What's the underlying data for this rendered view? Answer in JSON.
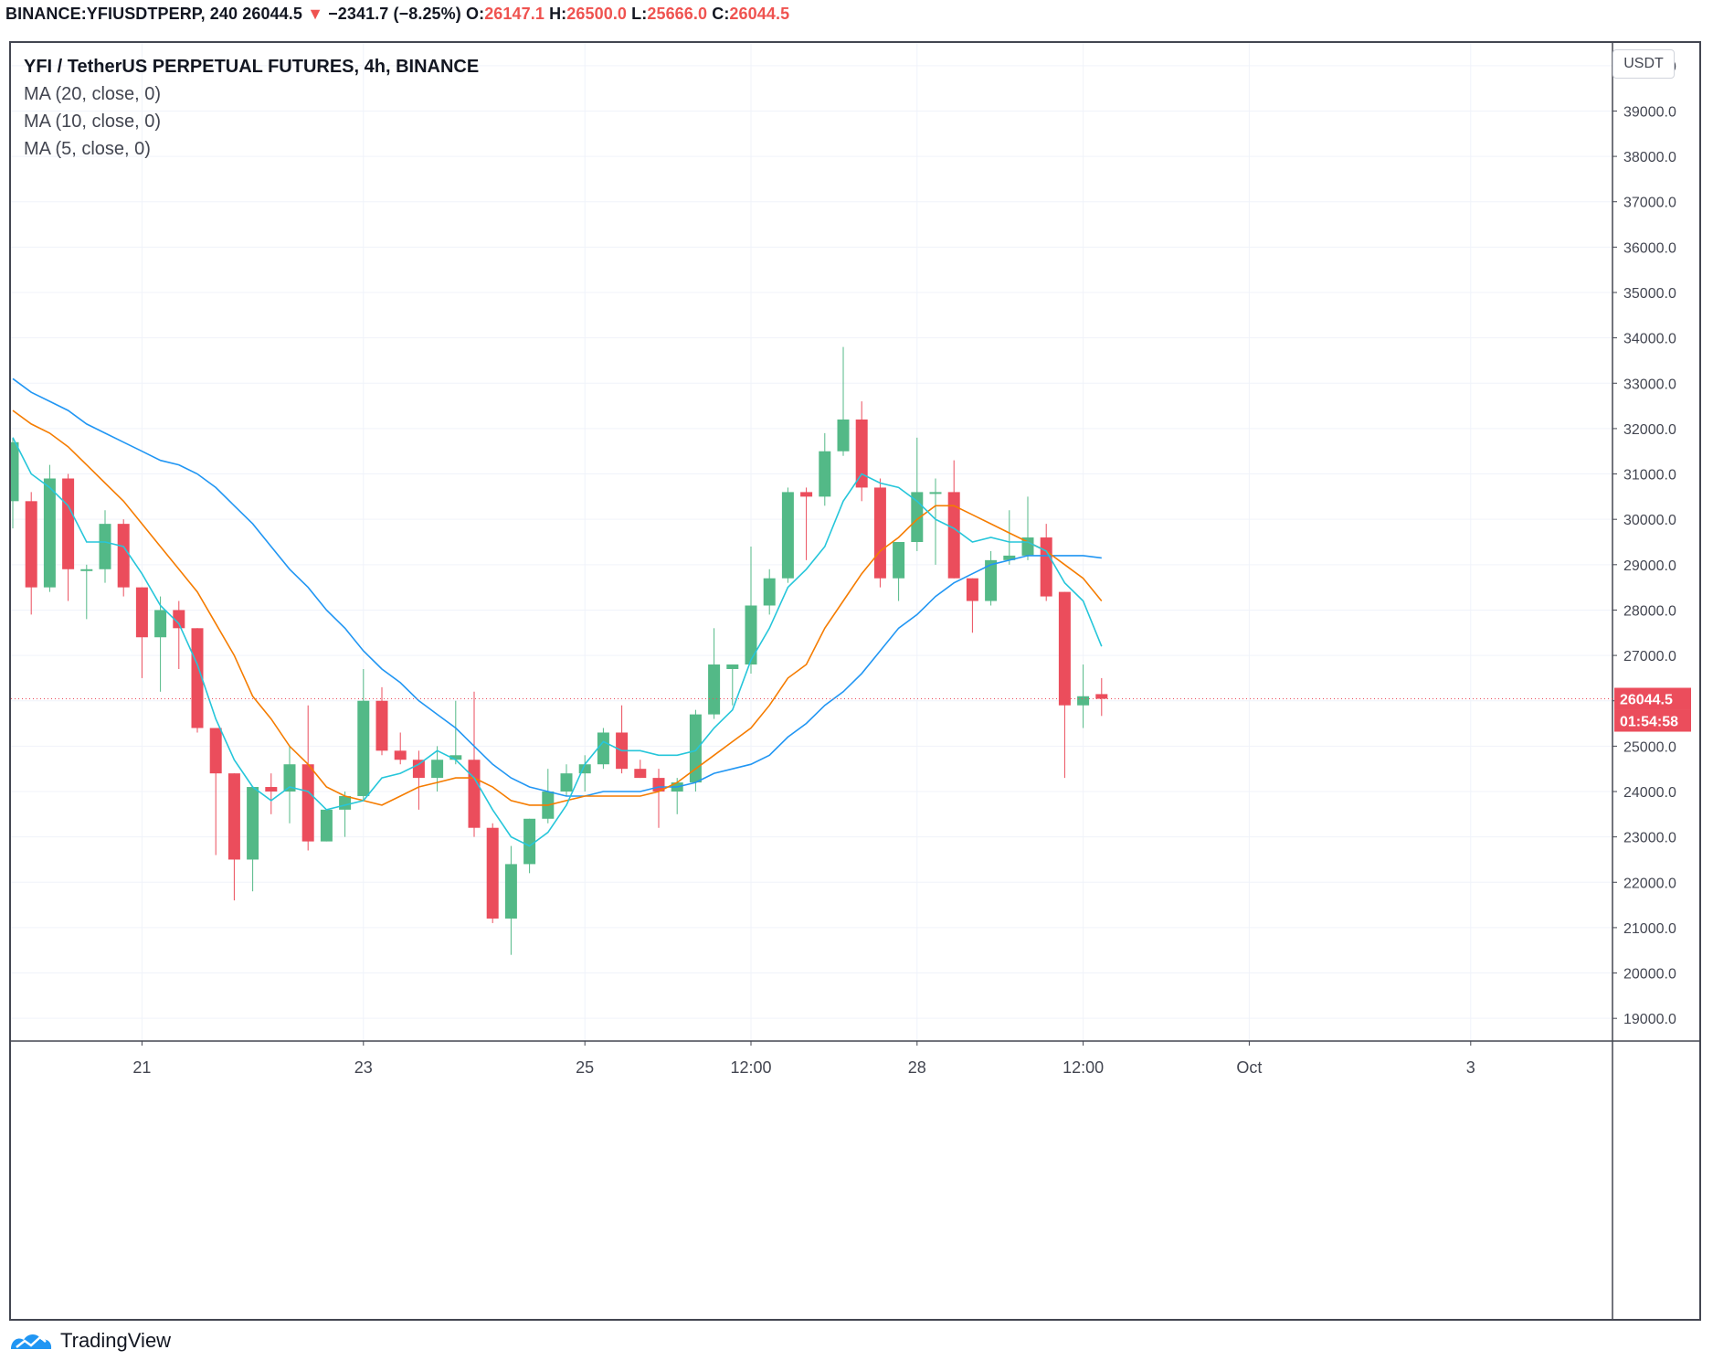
{
  "header": {
    "symbol": "BINANCE:YFIUSDTPERP, 240",
    "last": "26044.5",
    "arrow": "▼",
    "change": "−2341.7 (−8.25%)",
    "o_label": "O:",
    "o_value": "26147.1",
    "h_label": "H:",
    "h_value": "26500.0",
    "l_label": "L:",
    "l_value": "25666.0",
    "c_label": "C:",
    "c_value": "26044.5"
  },
  "legend": {
    "title": "YFI / TetherUS PERPETUAL FUTURES, 4h, BINANCE",
    "ma20": "MA (20, close, 0)",
    "ma10": "MA (10, close, 0)",
    "ma5": "MA (5, close, 0)"
  },
  "currency_label": "USDT",
  "footer": {
    "brand": "TradingView"
  },
  "colors": {
    "up": "#53b987",
    "down": "#eb4d5c",
    "ma20": "#2196f3",
    "ma10": "#f57c00",
    "ma5": "#26c6da",
    "price_tag": "#eb4d5c",
    "grid": "#f0f3fa"
  },
  "chart_data": {
    "type": "candlestick",
    "timeframe": "4h",
    "y_range": [
      18500,
      40500
    ],
    "y_ticks": [
      "19000.0",
      "20000.0",
      "21000.0",
      "22000.0",
      "23000.0",
      "24000.0",
      "25000.0",
      "26000.0",
      "27000.0",
      "28000.0",
      "29000.0",
      "30000.0",
      "31000.0",
      "32000.0",
      "33000.0",
      "34000.0",
      "35000.0",
      "36000.0",
      "37000.0",
      "38000.0",
      "39000.0",
      "40000.0"
    ],
    "x_ticks": [
      {
        "label": "21",
        "bar": 7
      },
      {
        "label": "23",
        "bar": 19
      },
      {
        "label": "25",
        "bar": 31
      },
      {
        "label": "12:00",
        "bar": 40
      },
      {
        "label": "28",
        "bar": 49
      },
      {
        "label": "12:00",
        "bar": 58
      },
      {
        "label": "Oct",
        "bar": 67
      },
      {
        "label": "3",
        "bar": 79
      }
    ],
    "candles": [
      {
        "o": 30400,
        "h": 31800,
        "l": 29800,
        "c": 31700
      },
      {
        "o": 30400,
        "h": 30600,
        "l": 27900,
        "c": 28500
      },
      {
        "o": 28500,
        "h": 31200,
        "l": 28400,
        "c": 30900
      },
      {
        "o": 30900,
        "h": 31000,
        "l": 28200,
        "c": 28900
      },
      {
        "o": 28900,
        "h": 29000,
        "l": 27800,
        "c": 28900
      },
      {
        "o": 28900,
        "h": 30200,
        "l": 28600,
        "c": 29900
      },
      {
        "o": 29900,
        "h": 30000,
        "l": 28300,
        "c": 28500
      },
      {
        "o": 28500,
        "h": 28500,
        "l": 26500,
        "c": 27400
      },
      {
        "o": 27400,
        "h": 28300,
        "l": 26200,
        "c": 28000
      },
      {
        "o": 28000,
        "h": 28200,
        "l": 26700,
        "c": 27600
      },
      {
        "o": 27600,
        "h": 27600,
        "l": 25300,
        "c": 25400
      },
      {
        "o": 25400,
        "h": 25400,
        "l": 22600,
        "c": 24400
      },
      {
        "o": 24400,
        "h": 24400,
        "l": 21600,
        "c": 22500
      },
      {
        "o": 22500,
        "h": 24100,
        "l": 21800,
        "c": 24100
      },
      {
        "o": 24100,
        "h": 24400,
        "l": 23500,
        "c": 24000
      },
      {
        "o": 24000,
        "h": 25000,
        "l": 23300,
        "c": 24600
      },
      {
        "o": 24600,
        "h": 25900,
        "l": 22700,
        "c": 22900
      },
      {
        "o": 22900,
        "h": 23600,
        "l": 22900,
        "c": 23600
      },
      {
        "o": 23600,
        "h": 24000,
        "l": 23000,
        "c": 23900
      },
      {
        "o": 23900,
        "h": 26700,
        "l": 23800,
        "c": 26000
      },
      {
        "o": 26000,
        "h": 26300,
        "l": 24800,
        "c": 24900
      },
      {
        "o": 24900,
        "h": 25300,
        "l": 24600,
        "c": 24700
      },
      {
        "o": 24700,
        "h": 24900,
        "l": 23600,
        "c": 24300
      },
      {
        "o": 24300,
        "h": 25000,
        "l": 24000,
        "c": 24700
      },
      {
        "o": 24700,
        "h": 26000,
        "l": 24600,
        "c": 24800
      },
      {
        "o": 24700,
        "h": 26200,
        "l": 23000,
        "c": 23200
      },
      {
        "o": 23200,
        "h": 23300,
        "l": 21100,
        "c": 21200
      },
      {
        "o": 21200,
        "h": 22800,
        "l": 20400,
        "c": 22400
      },
      {
        "o": 22400,
        "h": 23400,
        "l": 22200,
        "c": 23400
      },
      {
        "o": 23400,
        "h": 24500,
        "l": 23300,
        "c": 24000
      },
      {
        "o": 24000,
        "h": 24600,
        "l": 23900,
        "c": 24400
      },
      {
        "o": 24400,
        "h": 24800,
        "l": 24000,
        "c": 24600
      },
      {
        "o": 24600,
        "h": 25400,
        "l": 24500,
        "c": 25300
      },
      {
        "o": 25300,
        "h": 25900,
        "l": 24400,
        "c": 24500
      },
      {
        "o": 24500,
        "h": 24700,
        "l": 24300,
        "c": 24300
      },
      {
        "o": 24300,
        "h": 24500,
        "l": 23200,
        "c": 24000
      },
      {
        "o": 24000,
        "h": 24300,
        "l": 23500,
        "c": 24200
      },
      {
        "o": 24200,
        "h": 25800,
        "l": 24000,
        "c": 25700
      },
      {
        "o": 25700,
        "h": 27600,
        "l": 25600,
        "c": 26800
      },
      {
        "o": 26700,
        "h": 26800,
        "l": 25900,
        "c": 26800
      },
      {
        "o": 26800,
        "h": 29400,
        "l": 26600,
        "c": 28100
      },
      {
        "o": 28100,
        "h": 28900,
        "l": 27900,
        "c": 28700
      },
      {
        "o": 28700,
        "h": 30700,
        "l": 28600,
        "c": 30600
      },
      {
        "o": 30600,
        "h": 30700,
        "l": 29100,
        "c": 30500
      },
      {
        "o": 30500,
        "h": 31900,
        "l": 30300,
        "c": 31500
      },
      {
        "o": 31500,
        "h": 33800,
        "l": 31400,
        "c": 32200
      },
      {
        "o": 32200,
        "h": 32600,
        "l": 30400,
        "c": 30700
      },
      {
        "o": 30700,
        "h": 30900,
        "l": 28500,
        "c": 28700
      },
      {
        "o": 28700,
        "h": 29500,
        "l": 28200,
        "c": 29500
      },
      {
        "o": 29500,
        "h": 31800,
        "l": 29300,
        "c": 30600
      },
      {
        "o": 30600,
        "h": 30900,
        "l": 29000,
        "c": 30600
      },
      {
        "o": 30600,
        "h": 31300,
        "l": 28700,
        "c": 28700
      },
      {
        "o": 28700,
        "h": 28700,
        "l": 27500,
        "c": 28200
      },
      {
        "o": 28200,
        "h": 29300,
        "l": 28100,
        "c": 29100
      },
      {
        "o": 29100,
        "h": 30200,
        "l": 29000,
        "c": 29200
      },
      {
        "o": 29200,
        "h": 30500,
        "l": 29100,
        "c": 29600
      },
      {
        "o": 29600,
        "h": 29900,
        "l": 28200,
        "c": 28300
      },
      {
        "o": 28400,
        "h": 28400,
        "l": 24300,
        "c": 25900
      },
      {
        "o": 25900,
        "h": 26800,
        "l": 25400,
        "c": 26100
      },
      {
        "o": 26147.1,
        "h": 26500,
        "l": 25666,
        "c": 26044.5
      }
    ],
    "ma5": [
      31800,
      31000,
      30700,
      30300,
      29500,
      29500,
      29400,
      28800,
      28100,
      27700,
      26800,
      25600,
      24700,
      24100,
      23800,
      24100,
      24000,
      23600,
      23700,
      23800,
      24300,
      24400,
      24600,
      24900,
      24700,
      24300,
      23600,
      23000,
      22800,
      23100,
      23700,
      24600,
      25100,
      24900,
      24900,
      24800,
      24800,
      24900,
      25400,
      25800,
      26900,
      27600,
      28500,
      28900,
      29400,
      30400,
      31000,
      30800,
      30700,
      30400,
      30000,
      29800,
      29500,
      29600,
      29500,
      29500,
      29300,
      28600,
      28200,
      27200
    ],
    "ma10": [
      32400,
      32100,
      31900,
      31600,
      31200,
      30800,
      30400,
      29900,
      29400,
      28900,
      28400,
      27700,
      27000,
      26100,
      25600,
      25000,
      24600,
      24100,
      23900,
      23800,
      23700,
      23900,
      24100,
      24200,
      24300,
      24300,
      24100,
      23800,
      23700,
      23700,
      23800,
      23900,
      23900,
      23900,
      23900,
      24000,
      24200,
      24500,
      24800,
      25100,
      25400,
      25900,
      26500,
      26800,
      27600,
      28200,
      28800,
      29300,
      29600,
      30000,
      30300,
      30300,
      30100,
      29900,
      29700,
      29500,
      29300,
      29000,
      28700,
      28200
    ],
    "ma20": [
      33100,
      32800,
      32600,
      32400,
      32100,
      31900,
      31700,
      31500,
      31300,
      31200,
      31000,
      30700,
      30300,
      29900,
      29400,
      28900,
      28500,
      28000,
      27600,
      27100,
      26700,
      26400,
      26000,
      25700,
      25400,
      25000,
      24600,
      24300,
      24100,
      24000,
      23900,
      23900,
      24000,
      24000,
      24000,
      24100,
      24100,
      24200,
      24400,
      24500,
      24600,
      24800,
      25200,
      25500,
      25900,
      26200,
      26600,
      27100,
      27600,
      27900,
      28300,
      28600,
      28800,
      29000,
      29100,
      29200,
      29200,
      29200,
      29200,
      29150
    ]
  },
  "last_price": {
    "value": 26044.5,
    "label": "26044.5",
    "countdown": "01:54:58"
  }
}
